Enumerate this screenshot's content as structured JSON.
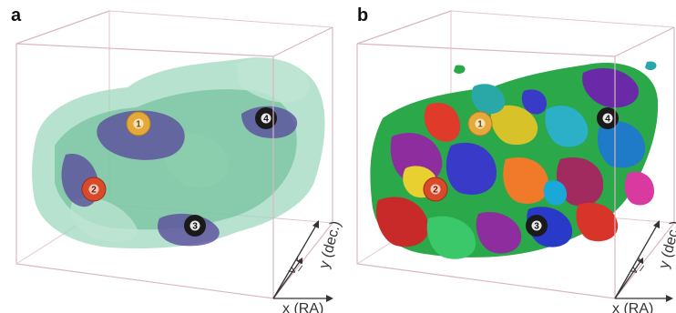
{
  "panels": [
    {
      "label": "a",
      "axes": {
        "x": "x (RA)",
        "y": "y (dec.)",
        "z": "v_r"
      },
      "markers": [
        {
          "id": "1",
          "color": "#e4a93a"
        },
        {
          "id": "2",
          "color": "#d84a2a"
        },
        {
          "id": "3",
          "color": "#1a1a1a"
        },
        {
          "id": "4",
          "color": "#1a1a1a"
        }
      ]
    },
    {
      "label": "b",
      "axes": {
        "x": "x (RA)",
        "y": "y (dec.)",
        "z": "v_r"
      },
      "markers": [
        {
          "id": "1",
          "color": "#e4a93a"
        },
        {
          "id": "2",
          "color": "#d84a2a"
        },
        {
          "id": "3",
          "color": "#1a1a1a"
        },
        {
          "id": "4",
          "color": "#1a1a1a"
        }
      ]
    }
  ],
  "colors": {
    "cube_edge": "#d9b7c1",
    "gas_green": "#6fbf9a",
    "clump_purple": "#5a4d9c"
  }
}
